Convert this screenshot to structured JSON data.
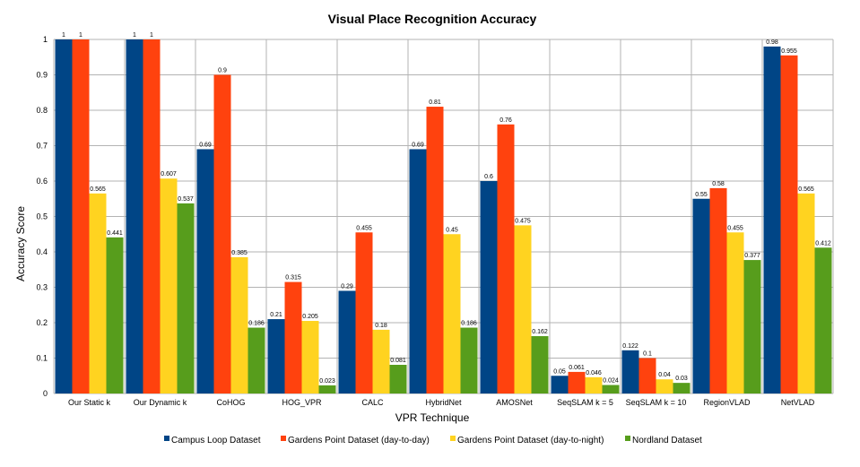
{
  "chart_data": {
    "type": "bar",
    "title": "Visual Place Recognition Accuracy",
    "xlabel": "VPR Technique",
    "ylabel": "Accuracy Score",
    "ylim": [
      0,
      1
    ],
    "yticks": [
      "0",
      "0.1",
      "0.2",
      "0.3",
      "0.4",
      "0.5",
      "0.6",
      "0.7",
      "0.8",
      "0.9",
      "1"
    ],
    "grid": true,
    "legend_position": "bottom",
    "categories": [
      "Our Static k",
      "Our Dynamic k",
      "CoHOG",
      "HOG_VPR",
      "CALC",
      "HybridNet",
      "AMOSNet",
      "SeqSLAM k = 5",
      "SeqSLAM k = 10",
      "RegionVLAD",
      "NetVLAD"
    ],
    "series": [
      {
        "name": "Campus Loop Dataset",
        "color": "#004586",
        "values": [
          1,
          1,
          0.69,
          0.21,
          0.29,
          0.69,
          0.6,
          0.05,
          0.122,
          0.55,
          0.98
        ]
      },
      {
        "name": "Gardens Point Dataset (day-to-day)",
        "color": "#ff420e",
        "values": [
          1,
          1,
          0.9,
          0.315,
          0.455,
          0.81,
          0.76,
          0.061,
          0.1,
          0.58,
          0.955
        ]
      },
      {
        "name": "Gardens Point Dataset (day-to-night)",
        "color": "#ffd320",
        "values": [
          0.565,
          0.607,
          0.385,
          0.205,
          0.18,
          0.45,
          0.475,
          0.046,
          0.04,
          0.455,
          0.565
        ]
      },
      {
        "name": "Nordland Dataset",
        "color": "#579d1c",
        "values": [
          0.441,
          0.537,
          0.186,
          0.023,
          0.081,
          0.186,
          0.162,
          0.024,
          0.03,
          0.377,
          0.412
        ]
      }
    ]
  }
}
